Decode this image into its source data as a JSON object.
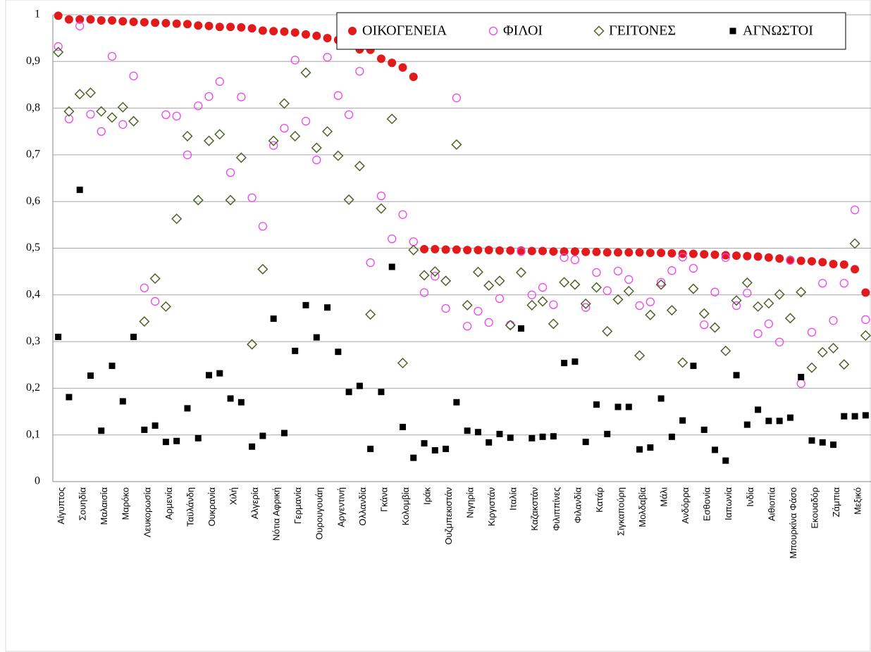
{
  "chart_data": {
    "type": "scatter",
    "categories": [
      "Αίγυπτος",
      null,
      "Σουηδία",
      null,
      "Μαλαισία",
      null,
      "Μαρόκο",
      null,
      "Λευκορωσία",
      null,
      "Αρμενία",
      null,
      "Ταϋλάνδη",
      null,
      "Ουκρανία",
      null,
      "Χιλή",
      null,
      "Αλγερία",
      null,
      "Νότια Αφρική",
      null,
      "Γερμανία",
      null,
      "Ουρουγουάη",
      null,
      "Αργεντινή",
      null,
      "Ολλανδία",
      null,
      "Γκάνα",
      null,
      "Κολομβία",
      null,
      "Ιράκ",
      null,
      "Ουζμπεκιστάν",
      null,
      "Νιγηρία",
      null,
      "Κιργιστάν",
      null,
      "Ιταλία",
      null,
      "Καζακστάν",
      null,
      "Φιλιππίνες",
      null,
      "Φιλανδία",
      null,
      "Κατάρ",
      null,
      "Σιγκαπούρη",
      null,
      "Μολδαβία",
      null,
      "Μάλι",
      null,
      "Ανδόρρα",
      null,
      "Εσθονία",
      null,
      "Ιαπωνία",
      null,
      "Ινδία",
      null,
      "Αιθιοπία",
      null,
      "Μπουρκίνα Φάσο",
      null,
      "Εκουαδόρ",
      null,
      "Ζάμπια",
      null,
      "Μεξικό",
      null
    ],
    "series": [
      {
        "name": "ΟΙΚΟΓΕΝΕΙΑ",
        "color": "#e31a1c",
        "marker": "filled-circle",
        "values": [
          0.998,
          0.99,
          0.99,
          0.99,
          0.988,
          0.988,
          0.986,
          0.985,
          0.984,
          0.983,
          0.982,
          0.981,
          0.98,
          0.977,
          0.976,
          0.974,
          0.974,
          0.973,
          0.971,
          0.966,
          0.965,
          0.964,
          0.962,
          0.958,
          0.955,
          0.95,
          0.946,
          0.94,
          0.926,
          0.925,
          0.906,
          0.897,
          0.887,
          0.867,
          0.498,
          0.498,
          0.497,
          0.497,
          0.496,
          0.496,
          0.496,
          0.495,
          0.495,
          0.495,
          0.494,
          0.494,
          0.493,
          0.493,
          0.493,
          0.492,
          0.492,
          0.491,
          0.491,
          0.491,
          0.491,
          0.49,
          0.49,
          0.489,
          0.488,
          0.488,
          0.487,
          0.486,
          0.485,
          0.484,
          0.483,
          0.482,
          0.48,
          0.478,
          0.475,
          0.473,
          0.472,
          0.47,
          0.466,
          0.465,
          0.455,
          0.405
        ]
      },
      {
        "name": "ΦΙΛΟΙ",
        "color": "#ee44ee",
        "marker": "open-circle",
        "values": [
          0.932,
          0.777,
          0.976,
          0.787,
          0.75,
          0.911,
          0.765,
          0.869,
          0.415,
          0.386,
          0.786,
          0.783,
          0.7,
          0.805,
          0.825,
          0.857,
          0.662,
          0.824,
          0.608,
          0.547,
          0.72,
          0.757,
          0.903,
          0.772,
          0.689,
          0.909,
          0.827,
          0.786,
          0.879,
          0.469,
          0.612,
          0.52,
          0.572,
          0.514,
          0.405,
          0.44,
          0.371,
          0.822,
          0.333,
          0.365,
          0.341,
          0.392,
          0.336,
          0.493,
          0.4,
          0.416,
          0.379,
          0.48,
          0.475,
          0.373,
          0.448,
          0.409,
          0.451,
          0.433,
          0.377,
          0.385,
          0.427,
          0.452,
          0.481,
          0.457,
          0.336,
          0.406,
          0.48,
          0.377,
          0.404,
          0.317,
          0.338,
          0.299,
          0.474,
          0.21,
          0.32,
          0.425,
          0.345,
          0.425,
          0.582,
          0.347
        ]
      },
      {
        "name": "ΓΕΙΤΟΝΕΣ",
        "color": "#4f6228",
        "marker": "open-diamond",
        "values": [
          0.92,
          0.793,
          0.83,
          0.833,
          0.793,
          0.78,
          0.802,
          0.772,
          0.343,
          0.435,
          0.375,
          0.563,
          0.74,
          0.603,
          0.73,
          0.744,
          0.603,
          0.694,
          0.294,
          0.455,
          0.73,
          0.81,
          0.74,
          0.876,
          0.715,
          0.75,
          0.698,
          0.604,
          0.676,
          0.358,
          0.585,
          0.777,
          0.254,
          0.496,
          0.442,
          0.45,
          0.43,
          0.722,
          0.378,
          0.449,
          0.42,
          0.43,
          0.335,
          0.448,
          0.378,
          0.386,
          0.338,
          0.427,
          0.422,
          0.381,
          0.416,
          0.322,
          0.39,
          0.408,
          0.27,
          0.357,
          0.422,
          0.367,
          0.255,
          0.413,
          0.36,
          0.33,
          0.28,
          0.388,
          0.426,
          0.375,
          0.382,
          0.401,
          0.35,
          0.406,
          0.244,
          0.277,
          0.286,
          0.251,
          0.51,
          0.313
        ]
      },
      {
        "name": "ΑΓΝΩΣΤΟΙ",
        "color": "#000000",
        "marker": "square",
        "values": [
          0.31,
          0.181,
          0.625,
          0.227,
          0.109,
          0.248,
          0.172,
          0.31,
          0.111,
          0.12,
          0.085,
          0.087,
          0.157,
          0.093,
          0.228,
          0.232,
          0.178,
          0.17,
          0.075,
          0.098,
          0.349,
          0.104,
          0.28,
          0.378,
          0.309,
          0.373,
          0.278,
          0.192,
          0.205,
          0.07,
          0.192,
          0.46,
          0.117,
          0.051,
          0.082,
          0.067,
          0.07,
          0.17,
          0.109,
          0.106,
          0.084,
          0.102,
          0.094,
          0.328,
          0.093,
          0.096,
          0.097,
          0.254,
          0.257,
          0.085,
          0.165,
          0.102,
          0.16,
          0.16,
          0.069,
          0.073,
          0.178,
          0.096,
          0.131,
          0.248,
          0.111,
          0.068,
          0.045,
          0.228,
          0.122,
          0.154,
          0.13,
          0.13,
          0.137,
          0.224,
          0.088,
          0.084,
          0.079,
          0.14,
          0.14,
          0.142
        ]
      }
    ],
    "ylim": [
      0,
      1
    ],
    "yticks": [
      0,
      {
        "value": 0.1,
        "label": "0,1"
      },
      {
        "value": 0.2,
        "label": "0,2"
      },
      {
        "value": 0.3,
        "label": "0,3"
      },
      {
        "value": 0.4,
        "label": "0,4"
      },
      {
        "value": 0.5,
        "label": "0,5"
      },
      {
        "value": 0.6,
        "label": "0,6"
      },
      {
        "value": 0.7,
        "label": "0,7"
      },
      {
        "value": 0.8,
        "label": "0,8"
      },
      {
        "value": 0.9,
        "label": "0,9"
      },
      1
    ],
    "grid": true,
    "legend": "top-right"
  }
}
